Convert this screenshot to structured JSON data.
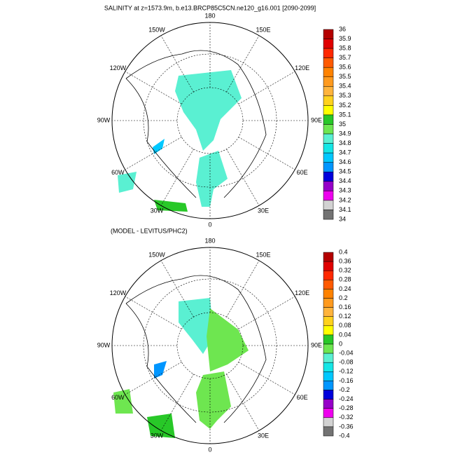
{
  "title": "SALINITY at z=1573.9m, b.e13.BRCP85C5CN.ne120_g16.001 [2090-2099]",
  "panels": [
    {
      "lon_labels": [
        "180",
        "150E",
        "120E",
        "90E",
        "60E",
        "30E",
        "0",
        "30W",
        "60W",
        "90W",
        "120W",
        "150W"
      ],
      "colorbar": {
        "labels": [
          "36",
          "35.9",
          "35.8",
          "35.7",
          "35.6",
          "35.5",
          "35.4",
          "35.3",
          "35.2",
          "35.1",
          "35",
          "34.9",
          "34.8",
          "34.7",
          "34.6",
          "34.5",
          "34.4",
          "34.3",
          "34.2",
          "34.1",
          "34"
        ],
        "colors": [
          "#b40000",
          "#e00000",
          "#ff2800",
          "#ff5a00",
          "#ff8200",
          "#ff9a1e",
          "#ffb43c",
          "#ffd21e",
          "#ffff00",
          "#28c828",
          "#6ee650",
          "#5af0d2",
          "#14e6e6",
          "#00c8ff",
          "#0096ff",
          "#0000dc",
          "#9600c8",
          "#ee00ee",
          "#d2d2d2",
          "#737373"
        ]
      }
    },
    {
      "subtitle": "(MODEL - LEVITUS/PHC2)",
      "lon_labels": [
        "180",
        "150E",
        "120E",
        "90E",
        "60E",
        "30E",
        "0",
        "30W",
        "60W",
        "90W",
        "120W",
        "150W"
      ],
      "colorbar": {
        "labels": [
          "0.4",
          "0.36",
          "0.32",
          "0.28",
          "0.24",
          "0.2",
          "0.16",
          "0.12",
          "0.08",
          "0.04",
          "0",
          "-0.04",
          "-0.08",
          "-0.12",
          "-0.16",
          "-0.2",
          "-0.24",
          "-0.28",
          "-0.32",
          "-0.36",
          "-0.4"
        ],
        "colors": [
          "#b40000",
          "#e00000",
          "#ff2800",
          "#ff5a00",
          "#ff8200",
          "#ff9a1e",
          "#ffb43c",
          "#ffd21e",
          "#ffff00",
          "#28c828",
          "#6ee650",
          "#5af0d2",
          "#14e6e6",
          "#00c8ff",
          "#0096ff",
          "#0000dc",
          "#9600c8",
          "#ee00ee",
          "#d2d2d2",
          "#737373"
        ]
      }
    }
  ]
}
